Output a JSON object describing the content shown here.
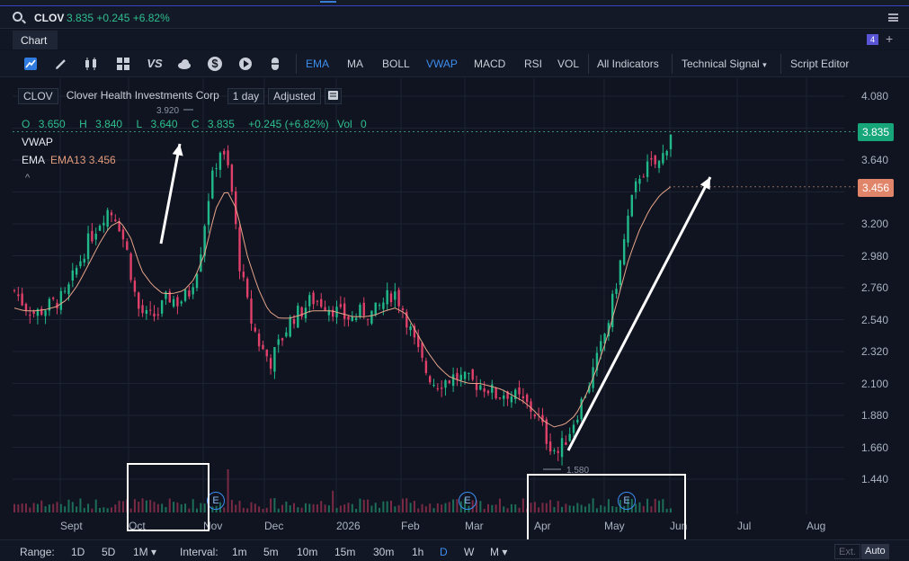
{
  "ticker": {
    "symbol": "CLOV",
    "quote": "3.835 +0.245 +6.82%"
  },
  "tabs": {
    "chart": "Chart",
    "badge": "4",
    "add": "+"
  },
  "toolbar": {
    "icons": [
      "area-chart-icon",
      "pencil-icon",
      "candles-icon",
      "grid-icon",
      "vs-icon",
      "cloud-icon",
      "dollar-icon",
      "replay-icon",
      "capsule-icon"
    ],
    "items": [
      "EMA",
      "MA",
      "BOLL",
      "VWAP",
      "MACD",
      "RSI",
      "VOL",
      "All Indicators",
      "Technical Signal",
      "Script Editor"
    ],
    "vs": "VS",
    "dollar": "$"
  },
  "legend": {
    "symbol": "CLOV",
    "name": "Clover Health Investments Corp",
    "interval": "1 day",
    "adjust": "Adjusted",
    "ohlc": {
      "o_label": "O",
      "o": "3.650",
      "h_label": "H",
      "h": "3.840",
      "l_label": "L",
      "l": "3.640",
      "c_label": "C",
      "c": "3.835",
      "chg": "+0.245 (+6.82%)",
      "vol_label": "Vol",
      "vol": "0"
    },
    "vwap": "VWAP",
    "ema_name": "EMA",
    "ema_value": "EMA13 3.456",
    "collapse": "^"
  },
  "price_tags": {
    "last": "3.835",
    "ema": "3.456",
    "high_note": "3.920",
    "low_note": "1.580"
  },
  "chart_data": {
    "type": "candlestick",
    "y_ticks": [
      "4.080",
      "3.860",
      "3.640",
      "3.420",
      "3.200",
      "2.980",
      "2.760",
      "2.540",
      "2.320",
      "2.100",
      "1.880",
      "1.660",
      "1.440"
    ],
    "x_ticks": [
      "Sept",
      "Oct",
      "Nov",
      "Dec",
      "2026",
      "Feb",
      "Mar",
      "Apr",
      "May",
      "Jun",
      "Jul",
      "Aug"
    ],
    "ylim": [
      1.44,
      4.08
    ],
    "close_path": [
      2.74,
      2.64,
      2.58,
      2.62,
      2.66,
      2.7,
      2.88,
      3.05,
      3.18,
      3.3,
      3.25,
      3.0,
      2.62,
      2.55,
      2.58,
      2.7,
      2.66,
      2.72,
      2.95,
      3.42,
      3.72,
      3.55,
      2.9,
      2.55,
      2.35,
      2.25,
      2.4,
      2.55,
      2.6,
      2.68,
      2.66,
      2.62,
      2.56,
      2.55,
      2.6,
      2.58,
      2.66,
      2.74,
      2.6,
      2.38,
      2.2,
      2.1,
      2.12,
      2.15,
      2.12,
      2.1,
      2.08,
      2.02,
      2.04,
      2.0,
      1.95,
      1.88,
      1.7,
      1.62,
      1.75,
      1.92,
      2.1,
      2.3,
      2.55,
      2.9,
      3.3,
      3.55,
      3.6,
      3.62,
      3.835
    ],
    "ema_path": [
      2.62,
      2.6,
      2.6,
      2.61,
      2.63,
      2.68,
      2.78,
      2.92,
      3.06,
      3.18,
      3.22,
      3.1,
      2.88,
      2.78,
      2.72,
      2.72,
      2.74,
      2.82,
      3.0,
      3.3,
      3.44,
      3.3,
      2.98,
      2.76,
      2.6,
      2.55,
      2.55,
      2.57,
      2.6,
      2.6,
      2.6,
      2.58,
      2.56,
      2.56,
      2.57,
      2.6,
      2.62,
      2.58,
      2.45,
      2.32,
      2.22,
      2.15,
      2.12,
      2.1,
      2.1,
      2.08,
      2.06,
      2.02,
      1.98,
      1.92,
      1.84,
      1.8,
      1.82,
      1.88,
      2.02,
      2.2,
      2.42,
      2.68,
      2.95,
      3.15,
      3.3,
      3.4,
      3.456
    ],
    "grid": true,
    "earnings_markers": [
      "E",
      "E",
      "E"
    ]
  },
  "bottom": {
    "range_label": "Range:",
    "ranges": [
      "1D",
      "5D",
      "1M ▾"
    ],
    "interval_label": "Interval:",
    "intervals": [
      "1m",
      "5m",
      "10m",
      "15m",
      "30m",
      "1h",
      "D",
      "W",
      "M ▾"
    ],
    "ext": "Ext.",
    "auto": "Auto"
  }
}
